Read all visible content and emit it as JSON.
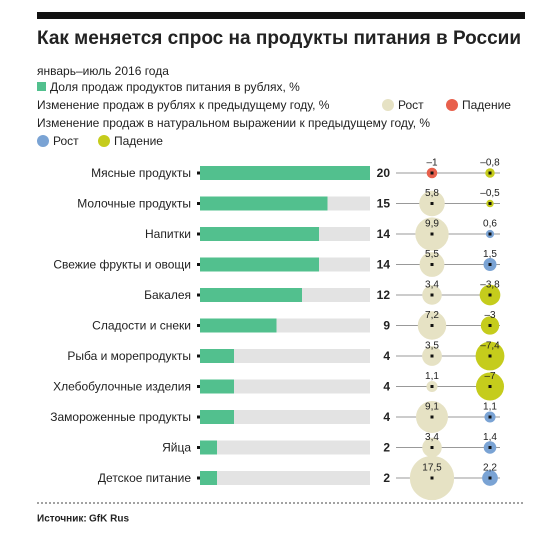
{
  "chart_data": {
    "type": "bar",
    "title": "Как меняется спрос на продукты питания в России",
    "subtitle": "январь–июль 2016 года",
    "categories": [
      "Мясные продукты",
      "Молочные продукты",
      "Напитки",
      "Свежие фрукты и овощи",
      "Бакалея",
      "Сладости и снеки",
      "Рыба и морепродукты",
      "Хлебобулочные изделия",
      "Замороженные продукты",
      "Яйца",
      "Детское питание"
    ],
    "xlim": [
      0,
      20
    ],
    "series": [
      {
        "name": "Доля продаж продуктов питания в рублях, %",
        "color": "#52c08e",
        "track_color": "#e3e3e3",
        "values": [
          20,
          15,
          14,
          14,
          12,
          9,
          4,
          4,
          4,
          2,
          2
        ]
      },
      {
        "name": "Изменение продаж в рублях к предыдущему году, %",
        "growth_label": "Рост",
        "decline_label": "Падение",
        "growth_color": "#e6e2c4",
        "decline_color": "#e8604c",
        "values": [
          -1,
          5.8,
          9.9,
          5.5,
          3.4,
          7.2,
          3.5,
          1.1,
          9.1,
          3.4,
          17.5
        ],
        "value_labels": [
          "–1",
          "5,8",
          "9,9",
          "5,5",
          "3,4",
          "7,2",
          "3,5",
          "1,1",
          "9,1",
          "3,4",
          "17,5"
        ]
      },
      {
        "name": "Изменение продаж в натуральном выражении к предыдущему году, %",
        "growth_label": "Рост",
        "decline_label": "Падение",
        "growth_color": "#7aa3d4",
        "decline_color": "#c5cc1c",
        "values": [
          -0.8,
          -0.5,
          0.6,
          1.5,
          -3.8,
          -3,
          -7.4,
          -7,
          1.1,
          1.4,
          2.2
        ],
        "value_labels": [
          "–0,8",
          "–0,5",
          "0,6",
          "1,5",
          "–3,8",
          "–3",
          "–7,4",
          "–7",
          "1,1",
          "1,4",
          "2,2"
        ]
      }
    ],
    "source_label": "Источник:",
    "source": "GfK Rus"
  }
}
